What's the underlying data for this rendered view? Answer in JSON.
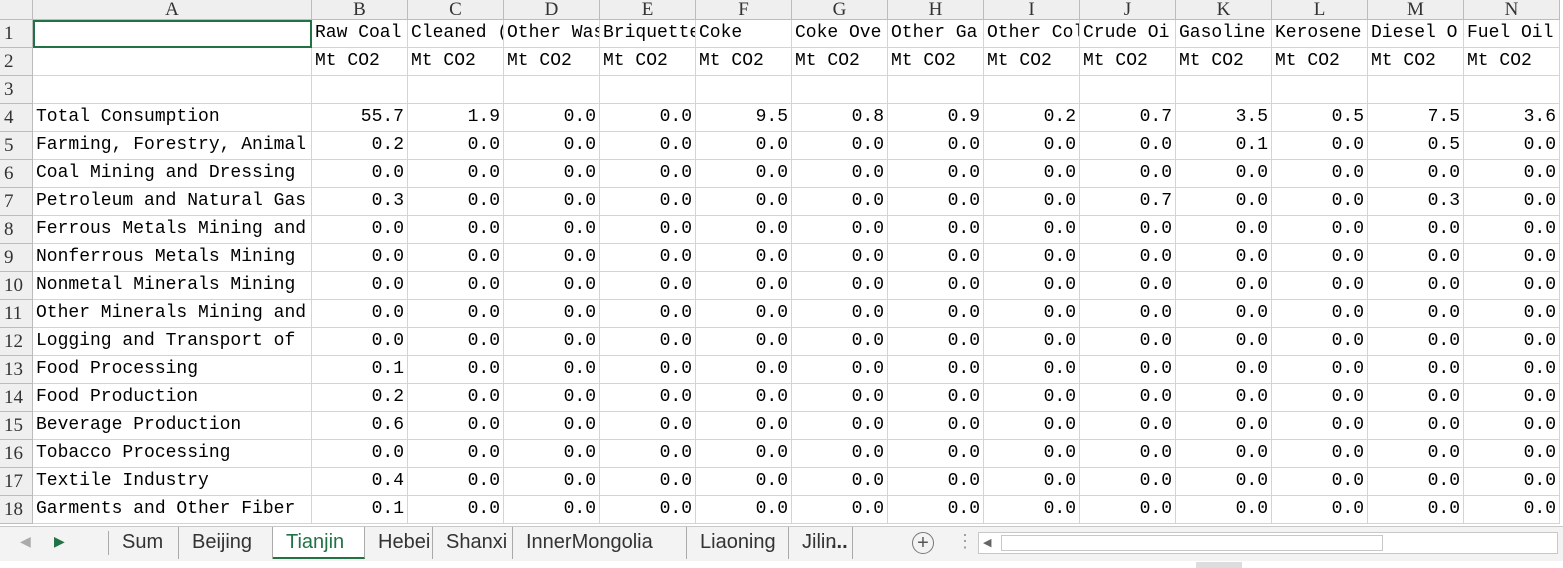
{
  "column_headers": [
    "A",
    "B",
    "C",
    "D",
    "E",
    "F",
    "G",
    "H",
    "I",
    "J",
    "K",
    "L",
    "M",
    "N"
  ],
  "row_numbers": [
    1,
    2,
    3,
    4,
    5,
    6,
    7,
    8,
    9,
    10,
    11,
    12,
    13,
    14,
    15,
    16,
    17,
    18
  ],
  "header_rows": {
    "names": [
      "Raw Coal",
      "Cleaned (",
      "Other Was",
      "Briquette",
      "Coke",
      "Coke Ove",
      "Other Ga",
      "Other Col",
      "Crude Oi",
      "Gasoline",
      "Kerosene",
      "Diesel O",
      "Fuel Oil"
    ],
    "units": [
      "Mt CO2",
      "Mt CO2",
      "Mt CO2",
      "Mt CO2",
      "Mt CO2",
      "Mt CO2",
      "Mt CO2",
      "Mt CO2",
      "Mt CO2",
      "Mt CO2",
      "Mt CO2",
      "Mt CO2",
      "Mt CO2"
    ]
  },
  "rows": [
    {
      "label": "Total Consumption",
      "values": [
        "55.7",
        "1.9",
        "0.0",
        "0.0",
        "9.5",
        "0.8",
        "0.9",
        "0.2",
        "0.7",
        "3.5",
        "0.5",
        "7.5",
        "3.6"
      ]
    },
    {
      "label": "Farming, Forestry, Animal",
      "values": [
        "0.2",
        "0.0",
        "0.0",
        "0.0",
        "0.0",
        "0.0",
        "0.0",
        "0.0",
        "0.0",
        "0.1",
        "0.0",
        "0.5",
        "0.0"
      ]
    },
    {
      "label": "Coal Mining and Dressing",
      "values": [
        "0.0",
        "0.0",
        "0.0",
        "0.0",
        "0.0",
        "0.0",
        "0.0",
        "0.0",
        "0.0",
        "0.0",
        "0.0",
        "0.0",
        "0.0"
      ]
    },
    {
      "label": "Petroleum and Natural Gas",
      "values": [
        "0.3",
        "0.0",
        "0.0",
        "0.0",
        "0.0",
        "0.0",
        "0.0",
        "0.0",
        "0.7",
        "0.0",
        "0.0",
        "0.3",
        "0.0"
      ]
    },
    {
      "label": "Ferrous Metals Mining and",
      "values": [
        "0.0",
        "0.0",
        "0.0",
        "0.0",
        "0.0",
        "0.0",
        "0.0",
        "0.0",
        "0.0",
        "0.0",
        "0.0",
        "0.0",
        "0.0"
      ]
    },
    {
      "label": "Nonferrous Metals Mining",
      "values": [
        "0.0",
        "0.0",
        "0.0",
        "0.0",
        "0.0",
        "0.0",
        "0.0",
        "0.0",
        "0.0",
        "0.0",
        "0.0",
        "0.0",
        "0.0"
      ]
    },
    {
      "label": "Nonmetal Minerals Mining",
      "values": [
        "0.0",
        "0.0",
        "0.0",
        "0.0",
        "0.0",
        "0.0",
        "0.0",
        "0.0",
        "0.0",
        "0.0",
        "0.0",
        "0.0",
        "0.0"
      ]
    },
    {
      "label": "Other Minerals Mining and",
      "values": [
        "0.0",
        "0.0",
        "0.0",
        "0.0",
        "0.0",
        "0.0",
        "0.0",
        "0.0",
        "0.0",
        "0.0",
        "0.0",
        "0.0",
        "0.0"
      ]
    },
    {
      "label": "Logging and Transport of",
      "values": [
        "0.0",
        "0.0",
        "0.0",
        "0.0",
        "0.0",
        "0.0",
        "0.0",
        "0.0",
        "0.0",
        "0.0",
        "0.0",
        "0.0",
        "0.0"
      ]
    },
    {
      "label": "Food Processing",
      "values": [
        "0.1",
        "0.0",
        "0.0",
        "0.0",
        "0.0",
        "0.0",
        "0.0",
        "0.0",
        "0.0",
        "0.0",
        "0.0",
        "0.0",
        "0.0"
      ]
    },
    {
      "label": "Food Production",
      "values": [
        "0.2",
        "0.0",
        "0.0",
        "0.0",
        "0.0",
        "0.0",
        "0.0",
        "0.0",
        "0.0",
        "0.0",
        "0.0",
        "0.0",
        "0.0"
      ]
    },
    {
      "label": "Beverage Production",
      "values": [
        "0.6",
        "0.0",
        "0.0",
        "0.0",
        "0.0",
        "0.0",
        "0.0",
        "0.0",
        "0.0",
        "0.0",
        "0.0",
        "0.0",
        "0.0"
      ]
    },
    {
      "label": "Tobacco Processing",
      "values": [
        "0.0",
        "0.0",
        "0.0",
        "0.0",
        "0.0",
        "0.0",
        "0.0",
        "0.0",
        "0.0",
        "0.0",
        "0.0",
        "0.0",
        "0.0"
      ]
    },
    {
      "label": "Textile Industry",
      "values": [
        "0.4",
        "0.0",
        "0.0",
        "0.0",
        "0.0",
        "0.0",
        "0.0",
        "0.0",
        "0.0",
        "0.0",
        "0.0",
        "0.0",
        "0.0"
      ]
    },
    {
      "label": "Garments and Other Fiber",
      "values": [
        "0.1",
        "0.0",
        "0.0",
        "0.0",
        "0.0",
        "0.0",
        "0.0",
        "0.0",
        "0.0",
        "0.0",
        "0.0",
        "0.0",
        "0.0"
      ]
    }
  ],
  "sheet_tabs": [
    "Sum",
    "Beijing",
    "Tianjin",
    "Hebei",
    "Shanxi",
    "InnerMongolia",
    "Liaoning",
    "Jilin"
  ],
  "more_tabs": "..."
}
